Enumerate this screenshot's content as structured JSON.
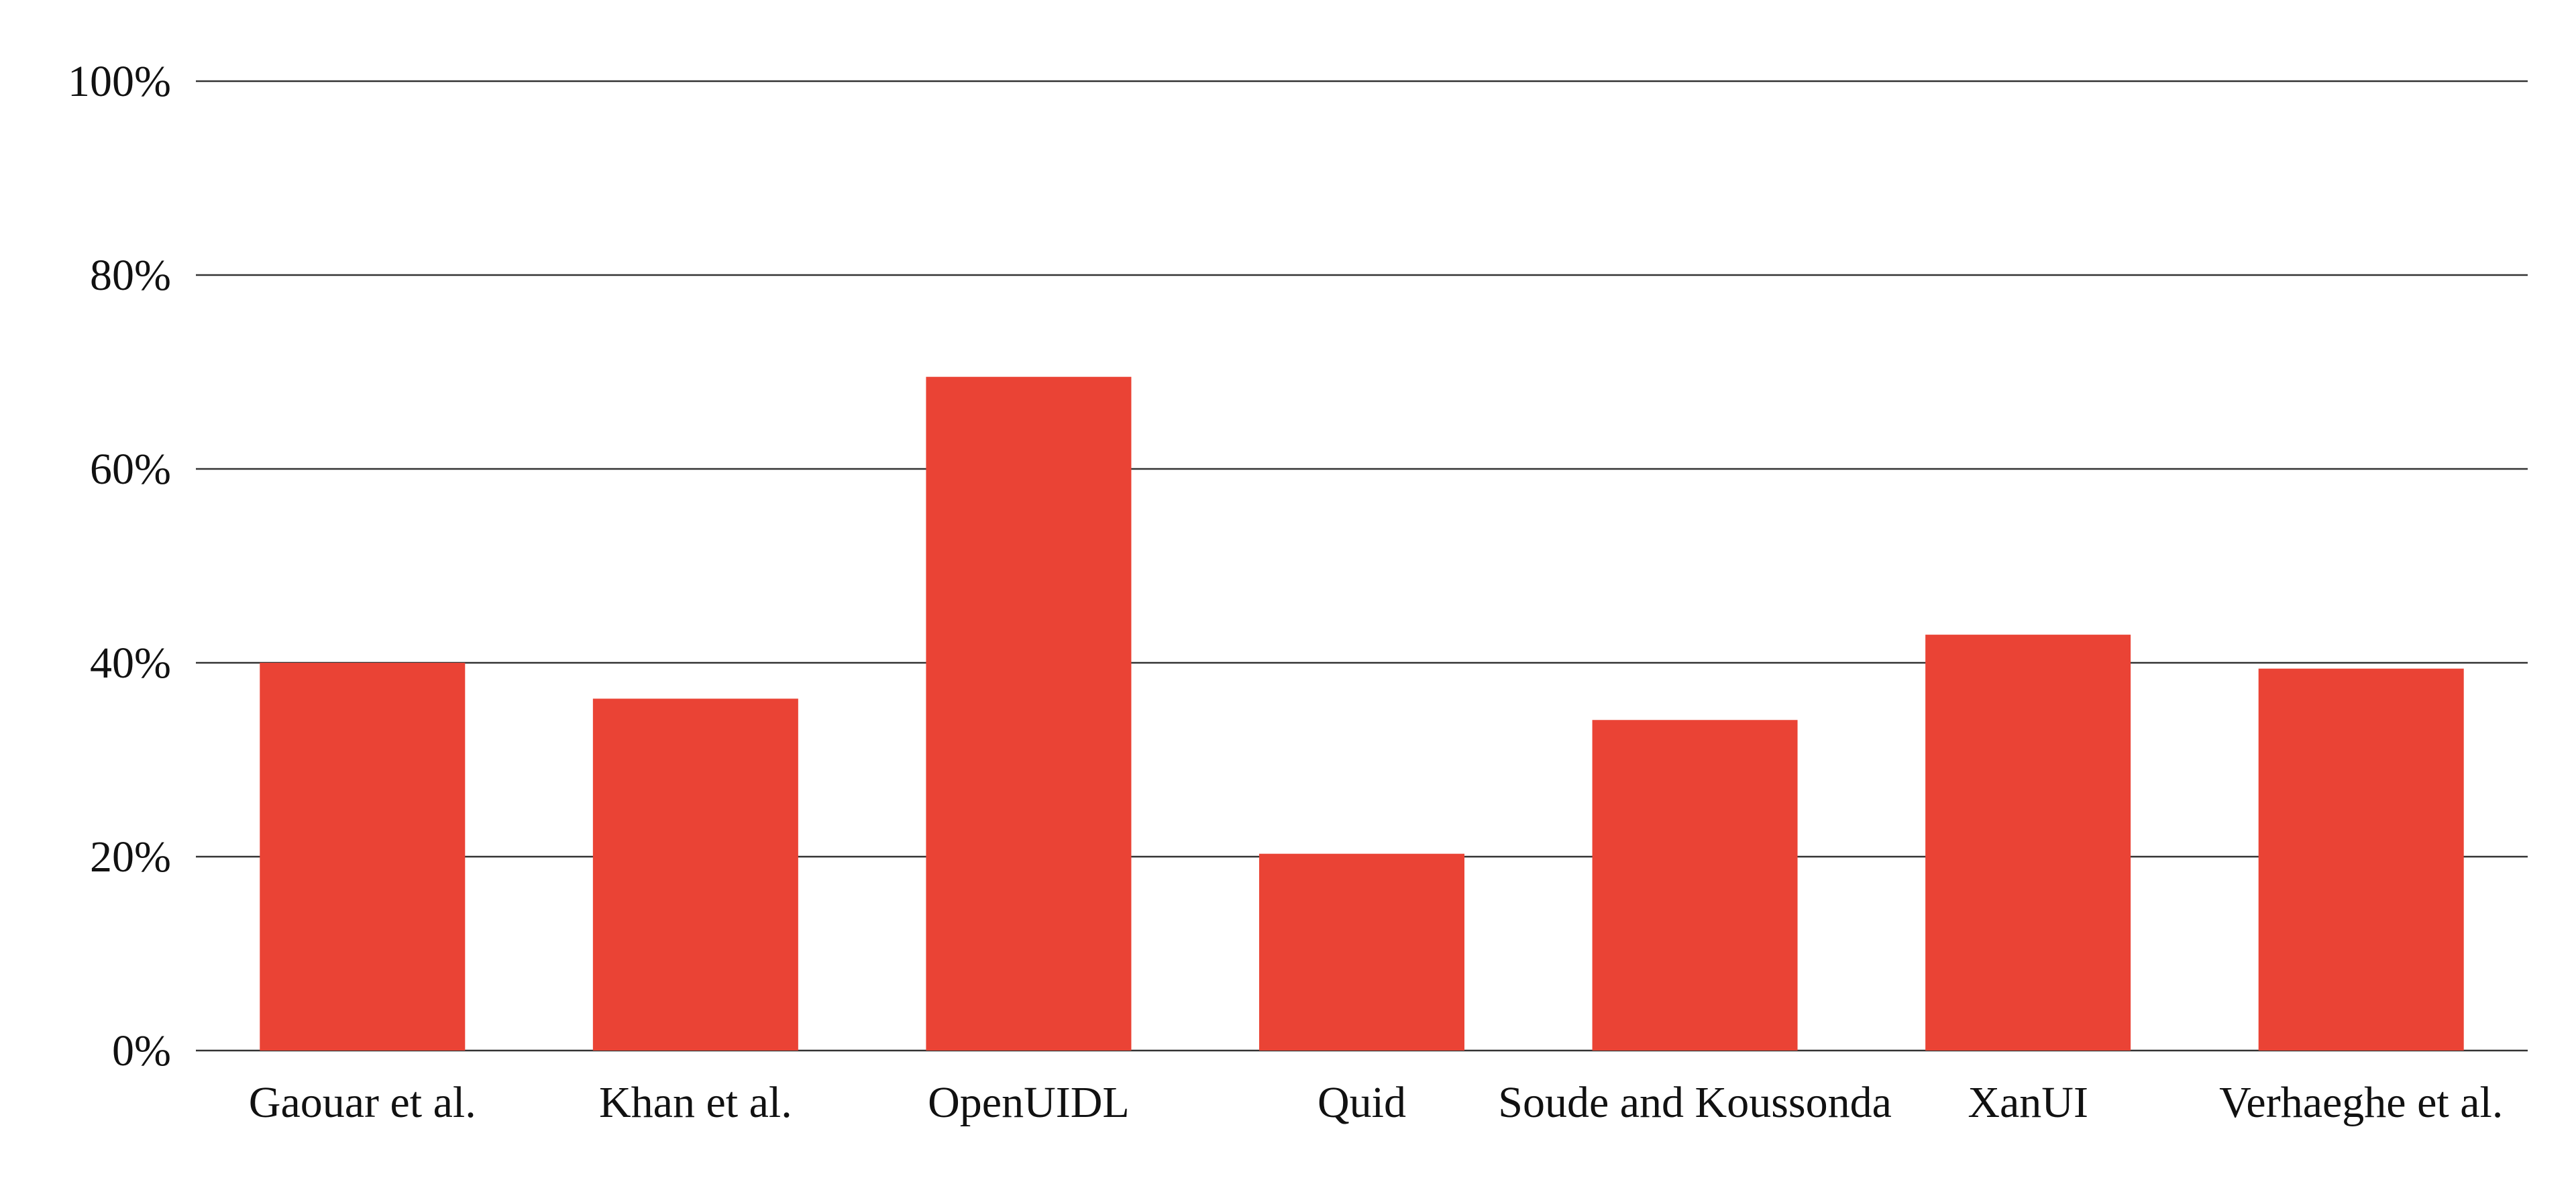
{
  "chart_data": {
    "type": "bar",
    "categories": [
      "Gaouar et al.",
      "Khan et al.",
      "OpenUIDL",
      "Quid",
      "Soude and Koussonda",
      "XanUI",
      "Verhaeghe et al."
    ],
    "values": [
      40,
      36.3,
      69.5,
      20.3,
      34.1,
      42.9,
      39.4
    ],
    "title": "",
    "xlabel": "",
    "ylabel": "",
    "ylim": [
      0,
      100
    ],
    "yticks": [
      0,
      20,
      40,
      60,
      80,
      100
    ],
    "ytick_labels": [
      "0%",
      "20%",
      "40%",
      "60%",
      "80%",
      "100%"
    ],
    "grid": true,
    "legend": "none",
    "bar_color": "#EA4335"
  }
}
